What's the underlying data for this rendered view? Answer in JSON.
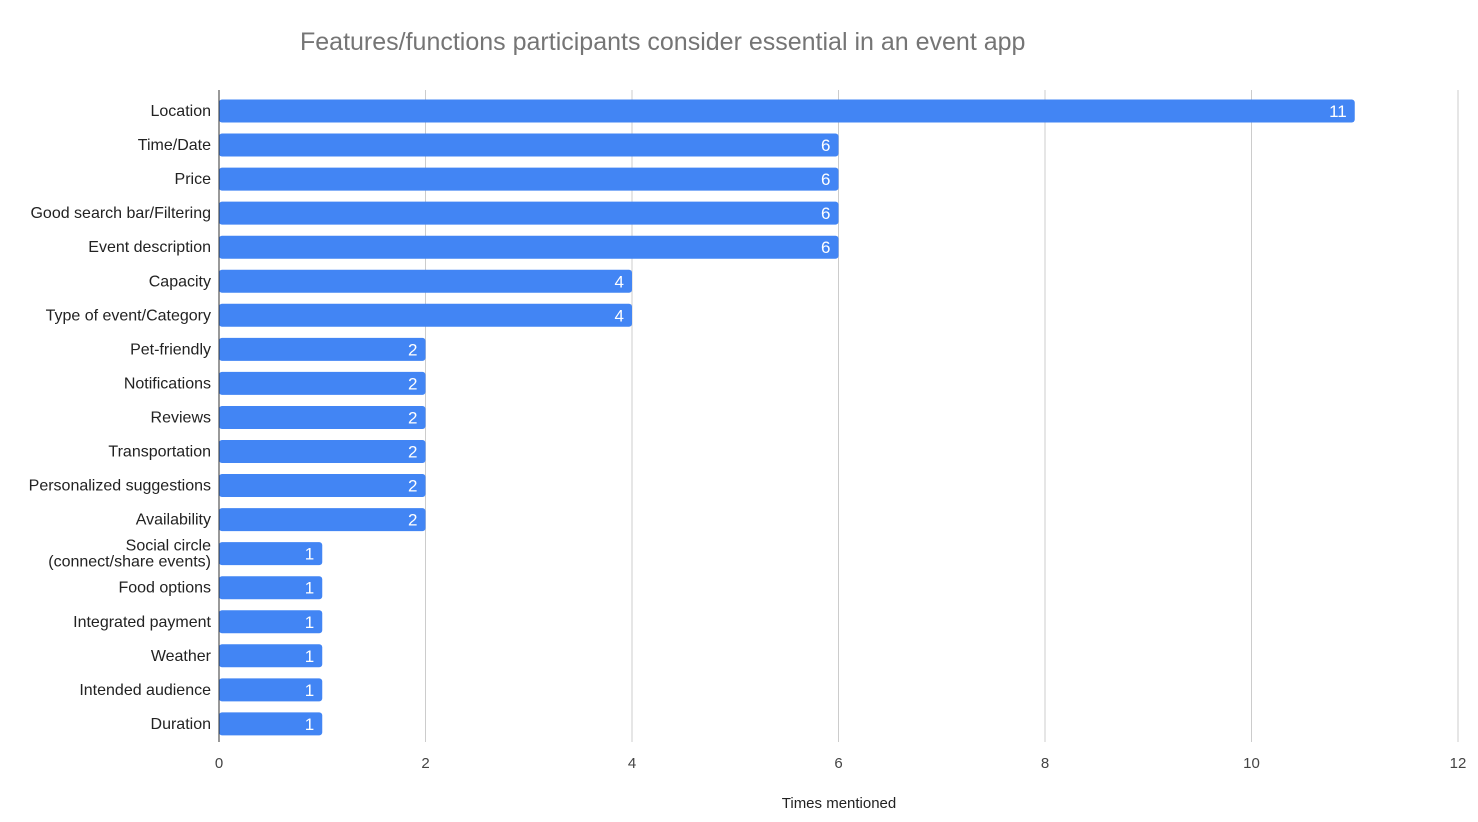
{
  "chart_data": {
    "type": "bar",
    "orientation": "horizontal",
    "title": "Features/functions participants consider essential in an event app",
    "xlabel": "Times mentioned",
    "ylabel": "",
    "categories": [
      "Location",
      "Time/Date",
      "Price",
      "Good search bar/Filtering",
      "Event description",
      "Capacity",
      "Type of event/Category",
      "Pet-friendly",
      "Notifications",
      "Reviews",
      "Transportation",
      "Personalized suggestions",
      "Availability",
      "Social circle (connect/share events)",
      "Food options",
      "Integrated payment",
      "Weather",
      "Intended audience",
      "Duration"
    ],
    "values": [
      11,
      6,
      6,
      6,
      6,
      4,
      4,
      2,
      2,
      2,
      2,
      2,
      2,
      1,
      1,
      1,
      1,
      1,
      1
    ],
    "xlim": [
      0,
      12
    ],
    "xticks": [
      0,
      2,
      4,
      6,
      8,
      10,
      12
    ],
    "grid": true,
    "legend": "none",
    "bar_color": "#4285F4",
    "grid_color": "#cccccc",
    "data_labels": true
  }
}
